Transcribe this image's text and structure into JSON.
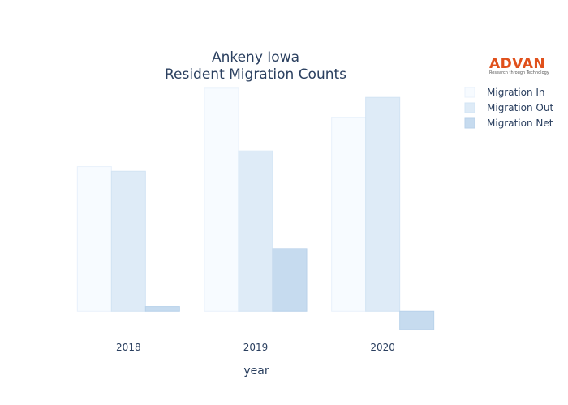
{
  "logo": {
    "text": "ADVAN",
    "tagline": "Research through Technology"
  },
  "chart_data": {
    "type": "bar",
    "title_lines": [
      "Ankeny Iowa",
      "Resident Migration Counts"
    ],
    "xlabel": "year",
    "ylabel": "",
    "categories": [
      "2018",
      "2019",
      "2020"
    ],
    "series": [
      {
        "name": "Migration In",
        "values": [
          7850,
          12100,
          10500
        ],
        "color": "#f7fbff",
        "stroke": "#e8f1fb"
      },
      {
        "name": "Migration Out",
        "values": [
          7600,
          8700,
          11600
        ],
        "color": "#deebf7",
        "stroke": "#d3e4f4"
      },
      {
        "name": "Migration Net",
        "values": [
          250,
          3400,
          -1000
        ],
        "color": "#c6dbef",
        "stroke": "#b9d2ea"
      }
    ],
    "ylim": [
      -1350,
      12400
    ],
    "grid": false,
    "legend_position": "top-right"
  }
}
